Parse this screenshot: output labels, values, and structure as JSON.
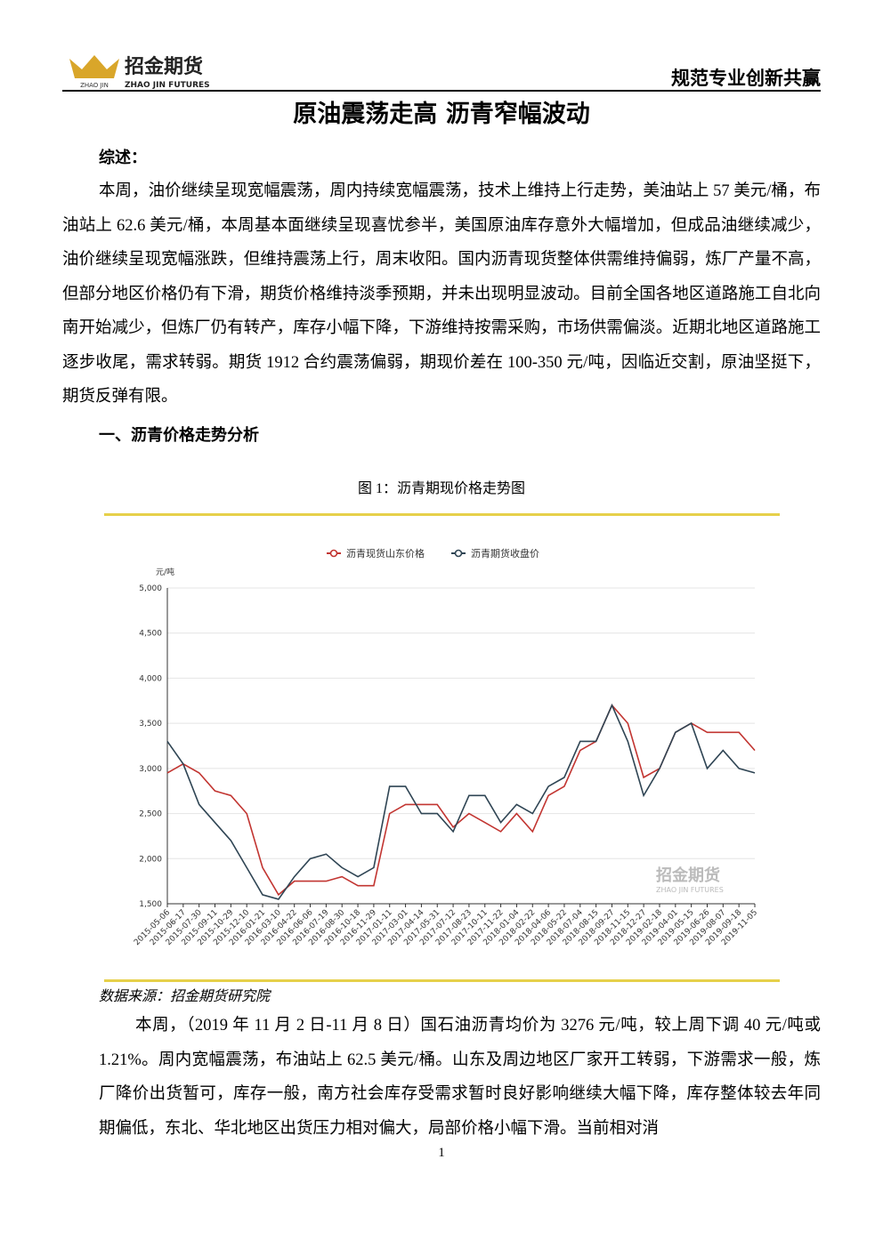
{
  "header": {
    "company": "招金期货",
    "company_en": "ZHAO JIN FUTURES",
    "logo_small": "ZHAO JIN",
    "slogan": "规范专业创新共赢"
  },
  "title": "原油震荡走高 沥青窄幅波动",
  "summary_heading": "综述：",
  "paragraphs": [
    "本周，油价继续呈现宽幅震荡，周内持续宽幅震荡，技术上维持上行走势，美油站上 57 美元/桶，布油站上 62.6 美元/桶，本周基本面继续呈现喜忧参半，美国原油库存意外大幅增加，但成品油继续减少，油价继续呈现宽幅涨跌，但维持震荡上行，周末收阳。国内沥青现货整体供需维持偏弱，炼厂产量不高，但部分地区价格仍有下滑，期货价格维持淡季预期，并未出现明显波动。目前全国各地区道路施工自北向南开始减少，但炼厂仍有转产，库存小幅下降，下游维持按需采购，市场供需偏淡。近期北地区道路施工逐步收尾，需求转弱。期货 1912 合约震荡偏弱，期现价差在 100-350 元/吨，因临近交割，原油坚挺下，期货反弹有限。",
    "本周，（2019 年 11 月 2 日-11 月 8 日）国石油沥青均价为 3276 元/吨，较上周下调 40 元/吨或 1.21%。周内宽幅震荡，布油站上 62.5 美元/桶。山东及周边地区厂家开工转弱，下游需求一般，炼厂降价出货暂可，库存一般，南方社会库存受需求暂时良好影响继续大幅下降，库存整体较去年同期偏低，东北、华北地区出货压力相对偏大，局部价格小幅下滑。当前相对消"
  ],
  "section_heading": "一、沥青价格走势分析",
  "figure_caption": "图 1：沥青期现价格走势图",
  "source": "数据来源：招金期货研究院",
  "page_number": "1",
  "chart_data": {
    "type": "line",
    "y_label": "元/吨",
    "watermark": "招金期货",
    "watermark_en": "ZHAO JIN FUTURES",
    "categories": [
      "2015-05-06",
      "2015-06-17",
      "2015-07-30",
      "2015-09-11",
      "2015-10-29",
      "2015-12-10",
      "2016-01-21",
      "2016-03-10",
      "2016-04-22",
      "2016-06-06",
      "2016-07-19",
      "2016-08-30",
      "2016-10-18",
      "2016-11-29",
      "2017-01-11",
      "2017-03-01",
      "2017-04-14",
      "2017-05-31",
      "2017-07-12",
      "2017-08-23",
      "2017-10-11",
      "2017-11-22",
      "2018-01-04",
      "2018-02-22",
      "2018-04-06",
      "2018-05-22",
      "2018-07-04",
      "2018-08-15",
      "2018-09-27",
      "2018-11-15",
      "2018-12-27",
      "2019-02-18",
      "2019-04-01",
      "2019-05-15",
      "2019-06-26",
      "2019-08-07",
      "2019-09-18",
      "2019-11-05"
    ],
    "series": [
      {
        "name": "沥青现货山东价格",
        "color": "#c23531",
        "values": [
          2950,
          3050,
          2950,
          2750,
          2700,
          2500,
          1900,
          1600,
          1750,
          1750,
          1750,
          1800,
          1700,
          1700,
          2500,
          2600,
          2600,
          2600,
          2350,
          2500,
          2400,
          2300,
          2500,
          2300,
          2700,
          2800,
          3200,
          3300,
          3700,
          3500,
          2900,
          3000,
          3400,
          3500,
          3400,
          3400,
          3400,
          3200
        ]
      },
      {
        "name": "沥青期货收盘价",
        "color": "#2f4554",
        "values": [
          3300,
          3050,
          2600,
          2400,
          2200,
          1900,
          1600,
          1550,
          1800,
          2000,
          2050,
          1900,
          1800,
          1900,
          2800,
          2800,
          2500,
          2500,
          2300,
          2700,
          2700,
          2400,
          2600,
          2500,
          2800,
          2900,
          3300,
          3300,
          3700,
          3300,
          2700,
          3000,
          3400,
          3500,
          3000,
          3200,
          3000,
          2950
        ]
      }
    ],
    "ylim": [
      1500,
      5000
    ],
    "yticks": [
      {
        "value": 1500,
        "label": "1,500"
      },
      {
        "value": 2000,
        "label": "2,000"
      },
      {
        "value": 2500,
        "label": "2,500"
      },
      {
        "value": 3000,
        "label": "3,000"
      },
      {
        "value": 3500,
        "label": "3,500"
      },
      {
        "value": 4000,
        "label": "4,000"
      },
      {
        "value": 4500,
        "label": "4,500"
      },
      {
        "value": 5000,
        "label": "5,000"
      }
    ],
    "grid": true
  }
}
